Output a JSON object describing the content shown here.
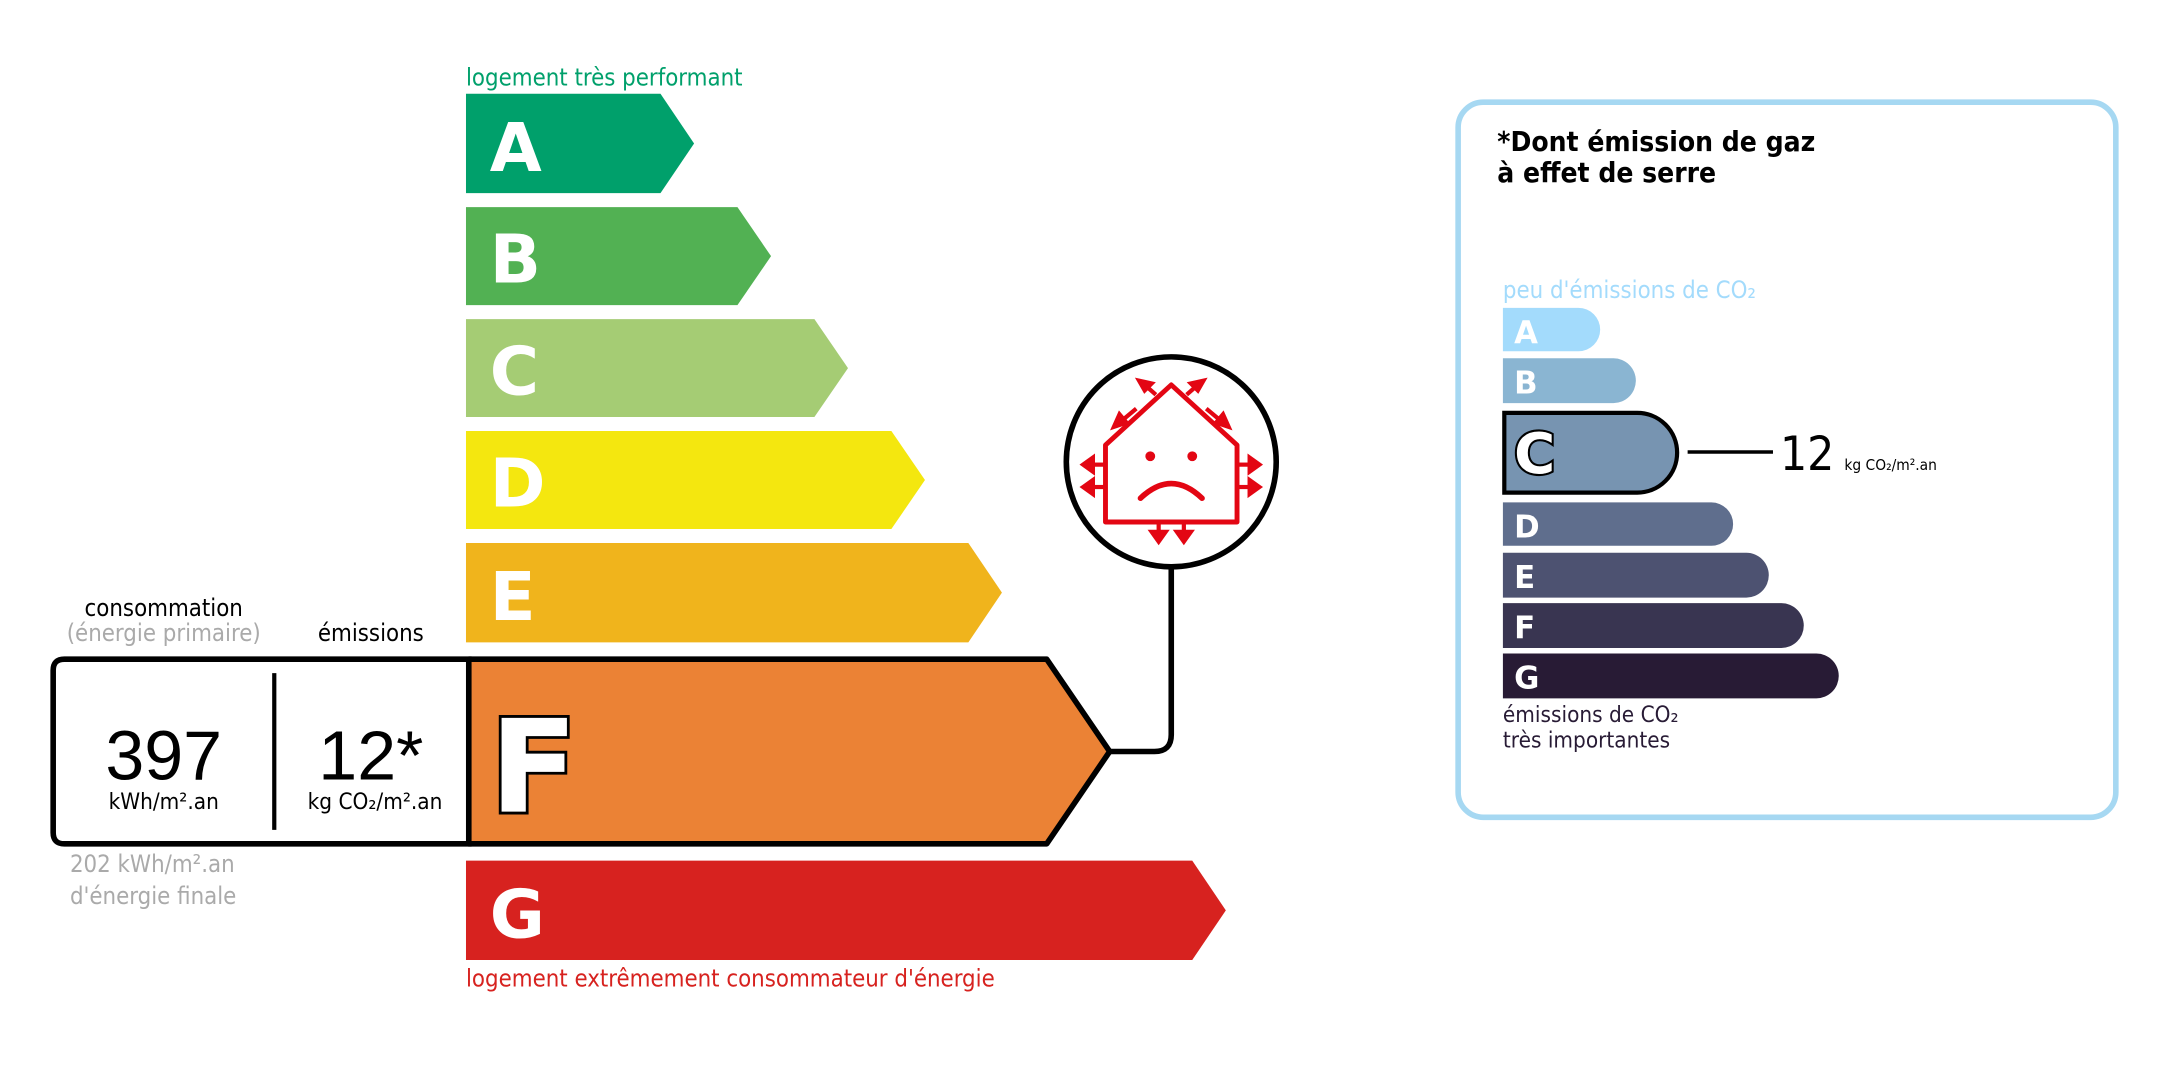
{
  "energy": {
    "top_label": "logement très performant",
    "bottom_label": "logement extrêmement consommateur d'énergie",
    "classes": [
      {
        "letter": "A",
        "color": "#00a06b"
      },
      {
        "letter": "B",
        "color": "#52b153"
      },
      {
        "letter": "C",
        "color": "#a5cc74"
      },
      {
        "letter": "D",
        "color": "#f4e70f"
      },
      {
        "letter": "E",
        "color": "#f0b41c"
      },
      {
        "letter": "F",
        "color": "#eb8235"
      },
      {
        "letter": "G",
        "color": "#d7221f"
      }
    ],
    "current_class": "F",
    "consumption_label": "consommation",
    "consumption_sublabel": "(énergie primaire)",
    "emissions_label": "émissions",
    "consumption_value": "397",
    "consumption_unit": "kWh/m².an",
    "emissions_value": "12*",
    "emissions_unit": "kg CO₂/m².an",
    "final_energy_value": "202 kWh/m².an",
    "final_energy_label": "d'énergie finale",
    "passoire_icon": "house-heat-loss-sad-icon"
  },
  "ges": {
    "title_line1": "*Dont émission de gaz",
    "title_line2": "à effet de serre",
    "top_label": "peu d'émissions de CO₂",
    "bottom_label_line1": "émissions de CO₂",
    "bottom_label_line2": "très importantes",
    "classes": [
      {
        "letter": "A",
        "color": "#a3dbfc"
      },
      {
        "letter": "B",
        "color": "#8ab5d2"
      },
      {
        "letter": "C",
        "color": "#7794b1"
      },
      {
        "letter": "D",
        "color": "#5f6e8d"
      },
      {
        "letter": "E",
        "color": "#4d5271"
      },
      {
        "letter": "F",
        "color": "#393551"
      },
      {
        "letter": "G",
        "color": "#281b35"
      }
    ],
    "current_class": "C",
    "value": "12",
    "unit": "kg CO₂/m².an",
    "border_color": "#a6d8f2"
  }
}
